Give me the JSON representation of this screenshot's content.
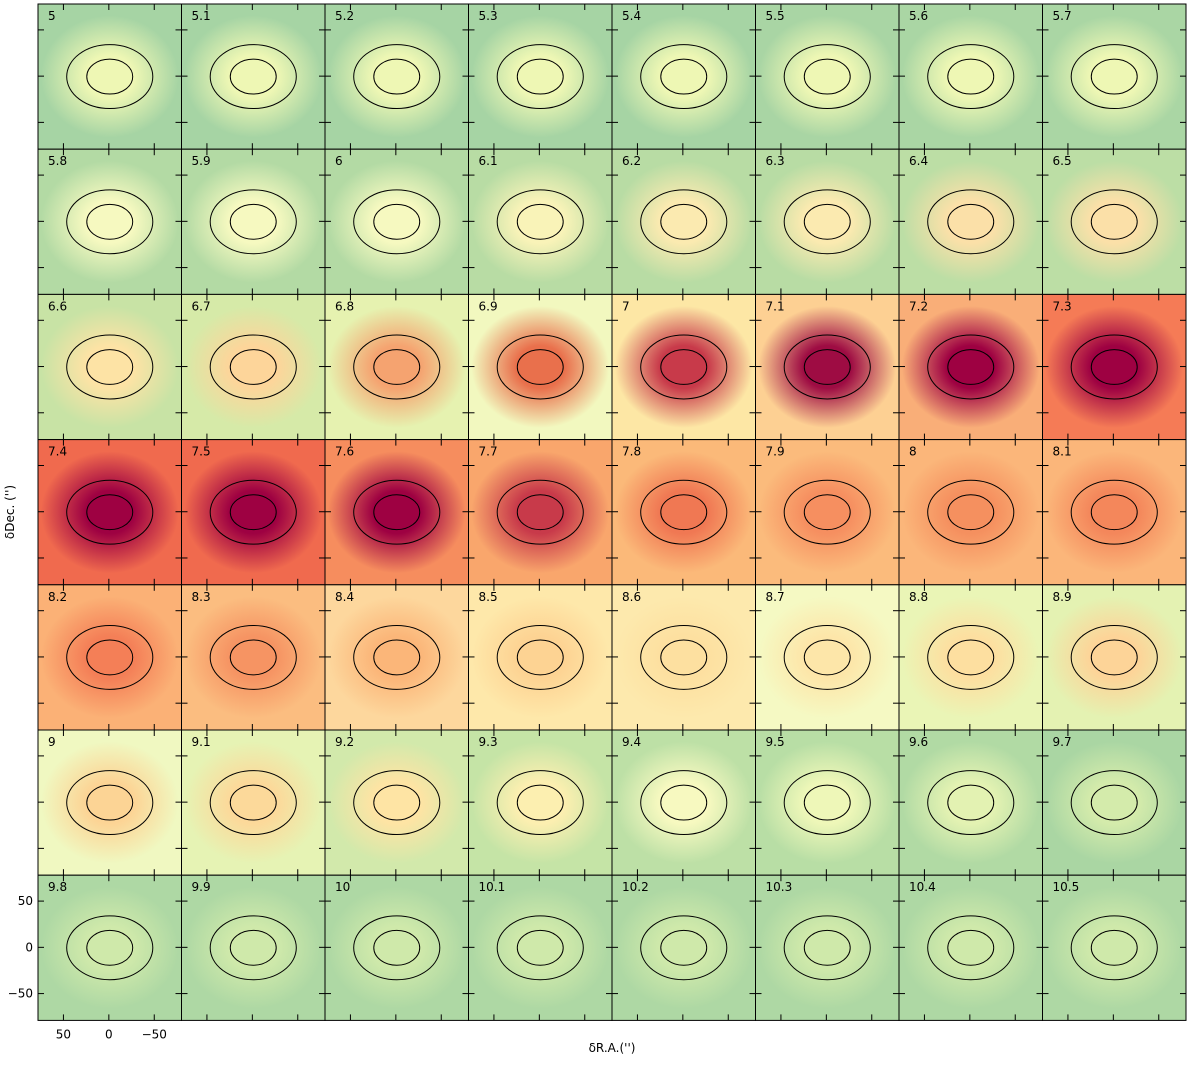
{
  "chart_data": {
    "type": "channelmap",
    "xlabel": "δR.A.('')",
    "ylabel": "δDec. ('')",
    "panels": [
      5,
      5.1,
      5.2,
      5.3,
      5.4,
      5.5,
      5.6,
      5.7,
      5.8,
      5.9,
      6,
      6.1,
      6.2,
      6.3,
      6.4,
      6.5,
      6.6,
      6.7,
      6.8,
      6.9,
      7,
      7.1,
      7.2,
      7.3,
      7.4,
      7.5,
      7.6,
      7.7,
      7.8,
      7.9,
      8,
      8.1,
      8.2,
      8.3,
      8.4,
      8.5,
      8.6,
      8.7,
      8.8,
      8.9,
      9,
      9.1,
      9.2,
      9.3,
      9.4,
      9.5,
      9.6,
      9.7,
      9.8,
      9.9,
      10,
      10.1,
      10.2,
      10.3,
      10.4,
      10.5
    ],
    "columns": 8,
    "colors": [
      [
        "#a6d4a4",
        "#eef7b4"
      ],
      [
        "#a6d4a4",
        "#eef7b4"
      ],
      [
        "#a6d4a4",
        "#eef7b4"
      ],
      [
        "#a6d4a4",
        "#eef7b4"
      ],
      [
        "#a6d4a4",
        "#eef7b4"
      ],
      [
        "#a9d5a4",
        "#eef7b4"
      ],
      [
        "#aad6a4",
        "#eef7b4"
      ],
      [
        "#aad6a4",
        "#eef7b4"
      ],
      [
        "#b3daa4",
        "#f6f9c0"
      ],
      [
        "#b3daa4",
        "#f6f9c0"
      ],
      [
        "#b3daa4",
        "#f6f9c0"
      ],
      [
        "#b8dca4",
        "#f9f3b8"
      ],
      [
        "#b8dca4",
        "#fbeab0"
      ],
      [
        "#b8dca4",
        "#fbeab0"
      ],
      [
        "#bcdea5",
        "#fbe0a8"
      ],
      [
        "#bcdea5",
        "#fbe0a8"
      ],
      [
        "#c8e3a5",
        "#fde3a5"
      ],
      [
        "#d6eaa8",
        "#fdd59a"
      ],
      [
        "#e6f2b0",
        "#f5a370"
      ],
      [
        "#f2f8bf",
        "#e9704c"
      ],
      [
        "#fde7a5",
        "#c83a4a"
      ],
      [
        "#fdd093",
        "#9e0c43"
      ],
      [
        "#f9ae78",
        "#9e0142"
      ],
      [
        "#f57b56",
        "#9e0142"
      ],
      [
        "#f06a4e",
        "#9e0142"
      ],
      [
        "#f06a4e",
        "#9e0142"
      ],
      [
        "#f68d5e",
        "#9e0142"
      ],
      [
        "#f9a66c",
        "#c83a4a"
      ],
      [
        "#fbb979",
        "#f07853"
      ],
      [
        "#fbbb7c",
        "#f68f60"
      ],
      [
        "#fbb67a",
        "#f5905f"
      ],
      [
        "#fbb67a",
        "#f4875b"
      ],
      [
        "#fbb176",
        "#f47f57"
      ],
      [
        "#fbbd80",
        "#f69463"
      ],
      [
        "#fdd79d",
        "#fbb679"
      ],
      [
        "#fee8aa",
        "#fdd393"
      ],
      [
        "#fde9ad",
        "#fde0a0"
      ],
      [
        "#f5f9c3",
        "#fde6a9"
      ],
      [
        "#eaf5b6",
        "#fddfa0"
      ],
      [
        "#e4f2b2",
        "#fdd498"
      ],
      [
        "#f0f8c1",
        "#fcd495"
      ],
      [
        "#e6f3b4",
        "#fcd99a"
      ],
      [
        "#d2e9ab",
        "#fee4a4"
      ],
      [
        "#c5e4a6",
        "#fcefb0"
      ],
      [
        "#bde0a6",
        "#f7f9c0"
      ],
      [
        "#b8dea5",
        "#eef7b8"
      ],
      [
        "#b1daa4",
        "#e3f2b2"
      ],
      [
        "#aad6a3",
        "#d4ebab"
      ],
      [
        "#aed8a4",
        "#cfe9aa"
      ],
      [
        "#aed8a4",
        "#cfe9aa"
      ],
      [
        "#aed8a4",
        "#cfe9aa"
      ],
      [
        "#aed8a4",
        "#cfe9aa"
      ],
      [
        "#aed8a4",
        "#cfe9aa"
      ],
      [
        "#aed8a4",
        "#cfe9aa"
      ],
      [
        "#aed8a4",
        "#cfe9aa"
      ],
      [
        "#aed8a4",
        "#cfe9aa"
      ]
    ],
    "xlim": [
      78,
      -80
    ],
    "ylim": [
      -79,
      78
    ],
    "xticks": [
      50,
      0,
      {
        "value": -50,
        "label": "−50"
      }
    ],
    "yticks": [
      50,
      0,
      {
        "value": -50,
        "label": "−50"
      }
    ]
  }
}
